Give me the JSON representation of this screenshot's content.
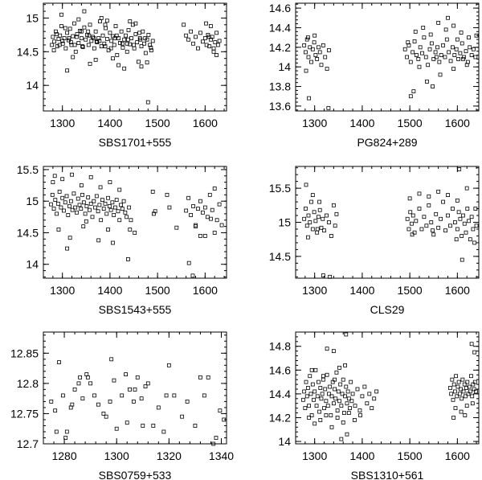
{
  "chart_data": [
    {
      "type": "scatter",
      "label": "SBS1701+555",
      "xlim": [
        1260,
        1645
      ],
      "ylim": [
        13.62,
        15.22
      ],
      "xticks": [
        1300,
        1400,
        1500,
        1600
      ],
      "yticks": [
        14,
        14.5,
        15
      ],
      "ytick_labels": [
        "14",
        "14.5",
        "15"
      ],
      "x": [
        1280,
        1283,
        1286,
        1289,
        1292,
        1295,
        1298,
        1301,
        1304,
        1307,
        1310,
        1313,
        1316,
        1319,
        1322,
        1325,
        1328,
        1331,
        1334,
        1337,
        1340,
        1343,
        1346,
        1349,
        1352,
        1355,
        1358,
        1361,
        1364,
        1367,
        1370,
        1373,
        1376,
        1379,
        1382,
        1385,
        1388,
        1391,
        1394,
        1397,
        1400,
        1403,
        1406,
        1409,
        1412,
        1415,
        1418,
        1421,
        1424,
        1427,
        1430,
        1433,
        1436,
        1439,
        1442,
        1445,
        1448,
        1451,
        1454,
        1457,
        1460,
        1463,
        1466,
        1469,
        1472,
        1475,
        1478,
        1481,
        1484,
        1487,
        1490,
        1555,
        1560,
        1565,
        1570,
        1575,
        1580,
        1585,
        1590,
        1595,
        1600,
        1603,
        1606,
        1609,
        1612,
        1615,
        1618,
        1621,
        1624,
        1627,
        1630,
        1282,
        1294,
        1306,
        1318,
        1330,
        1342,
        1354,
        1366,
        1378,
        1390,
        1402,
        1414,
        1426,
        1438,
        1450,
        1462,
        1474,
        1486,
        1298,
        1322,
        1346,
        1370,
        1394,
        1418,
        1442,
        1466,
        1310,
        1334,
        1358,
        1382,
        1406,
        1430,
        1454,
        1478,
        1612,
        1624,
        1602,
        1618,
        1278,
        1288,
        1300,
        1314,
        1326,
        1340,
        1356,
        1372,
        1390,
        1410,
        1436,
        1464,
        1480,
        1608
      ],
      "y": [
        14.72,
        14.65,
        14.8,
        14.58,
        14.69,
        14.74,
        14.88,
        14.62,
        14.7,
        14.55,
        14.78,
        14.67,
        14.84,
        14.6,
        14.73,
        14.92,
        14.5,
        14.76,
        14.63,
        14.81,
        14.7,
        14.57,
        14.86,
        14.68,
        14.75,
        14.6,
        14.9,
        14.66,
        14.72,
        14.55,
        14.8,
        14.64,
        14.7,
        14.95,
        14.58,
        14.74,
        14.62,
        14.85,
        14.69,
        14.52,
        14.78,
        14.66,
        14.73,
        14.6,
        14.88,
        14.45,
        14.7,
        14.63,
        14.8,
        14.56,
        14.68,
        14.74,
        14.5,
        14.82,
        14.61,
        14.7,
        14.9,
        14.55,
        14.76,
        14.64,
        14.35,
        14.7,
        14.58,
        14.8,
        14.62,
        14.48,
        14.68,
        14.75,
        14.6,
        14.52,
        14.66,
        14.9,
        14.74,
        14.68,
        14.8,
        14.62,
        14.72,
        14.55,
        14.78,
        14.65,
        14.7,
        14.6,
        14.75,
        14.58,
        14.68,
        14.72,
        14.5,
        14.64,
        14.78,
        14.6,
        14.66,
        14.52,
        14.6,
        14.85,
        14.64,
        14.72,
        14.58,
        14.8,
        14.7,
        14.66,
        14.9,
        14.55,
        14.74,
        14.62,
        14.68,
        14.6,
        14.78,
        14.7,
        14.56,
        15.05,
        14.42,
        15.1,
        14.38,
        14.96,
        14.3,
        14.95,
        14.28,
        14.22,
        14.98,
        14.32,
        15.0,
        14.4,
        14.25,
        14.92,
        14.34,
        14.88,
        14.45,
        14.92,
        14.55,
        14.6,
        14.76,
        14.66,
        14.7,
        14.6,
        14.8,
        14.74,
        14.65,
        14.58,
        14.7,
        14.62,
        14.68,
        13.75,
        14.72
      ],
      "title": "",
      "xlabel": "",
      "ylabel": ""
    },
    {
      "type": "scatter",
      "label": "PG824+289",
      "xlim": [
        1260,
        1645
      ],
      "ylim": [
        13.55,
        14.65
      ],
      "xticks": [
        1300,
        1400,
        1500,
        1600
      ],
      "yticks": [
        13.6,
        13.8,
        14,
        14.2,
        14.4,
        14.6
      ],
      "ytick_labels": [
        "13.6",
        "13.8",
        "14",
        "14.2",
        "14.4",
        "14.6"
      ],
      "x": [
        1278,
        1281,
        1284,
        1287,
        1290,
        1293,
        1296,
        1299,
        1302,
        1305,
        1308,
        1311,
        1314,
        1318,
        1322,
        1326,
        1330,
        1490,
        1494,
        1498,
        1502,
        1506,
        1510,
        1514,
        1518,
        1522,
        1526,
        1530,
        1534,
        1538,
        1542,
        1546,
        1550,
        1554,
        1558,
        1562,
        1566,
        1570,
        1574,
        1578,
        1582,
        1586,
        1590,
        1594,
        1598,
        1602,
        1606,
        1610,
        1614,
        1618,
        1622,
        1626,
        1630,
        1634,
        1638,
        1286,
        1300,
        1496,
        1512,
        1528,
        1544,
        1560,
        1576,
        1592,
        1608,
        1624,
        1640,
        1282,
        1508,
        1536,
        1564,
        1592,
        1620,
        1329,
        1502,
        1548,
        1580,
        1612,
        1288,
        1520,
        1556,
        1600
      ],
      "y": [
        14.22,
        14.15,
        14.28,
        14.1,
        14.2,
        14.05,
        14.18,
        14.25,
        14.12,
        14.08,
        14.2,
        14.15,
        14.02,
        14.22,
        14.1,
        13.98,
        14.17,
        14.18,
        14.1,
        14.22,
        14.05,
        14.15,
        14.26,
        14.12,
        14.08,
        14.2,
        14.14,
        14.3,
        14.1,
        14.02,
        14.18,
        14.24,
        14.08,
        14.15,
        14.2,
        14.05,
        14.12,
        14.22,
        14.1,
        14.28,
        14.15,
        14.06,
        14.2,
        14.12,
        14.18,
        14.08,
        14.14,
        14.24,
        14.1,
        14.16,
        14.05,
        14.2,
        14.12,
        14.18,
        14.1,
        14.3,
        14.32,
        14.25,
        14.36,
        14.4,
        14.33,
        14.45,
        14.38,
        14.42,
        14.35,
        14.3,
        14.32,
        13.96,
        13.75,
        13.85,
        13.92,
        13.98,
        14.02,
        13.58,
        13.7,
        13.8,
        14.5,
        14.08,
        13.68,
        14.0,
        14.1,
        14.28
      ],
      "title": "",
      "xlabel": "",
      "ylabel": ""
    },
    {
      "type": "scatter",
      "label": "SBS1543+555",
      "xlim": [
        1260,
        1645
      ],
      "ylim": [
        13.78,
        15.55
      ],
      "xticks": [
        1300,
        1400,
        1500,
        1600
      ],
      "yticks": [
        14,
        14.5,
        15,
        15.5
      ],
      "ytick_labels": [
        "14",
        "14.5",
        "15",
        "15.5"
      ],
      "x": [
        1276,
        1279,
        1282,
        1285,
        1288,
        1291,
        1294,
        1297,
        1300,
        1303,
        1306,
        1309,
        1312,
        1315,
        1318,
        1321,
        1324,
        1327,
        1330,
        1333,
        1336,
        1339,
        1342,
        1345,
        1348,
        1351,
        1354,
        1357,
        1360,
        1363,
        1366,
        1369,
        1372,
        1375,
        1378,
        1381,
        1384,
        1387,
        1390,
        1393,
        1396,
        1399,
        1402,
        1405,
        1408,
        1411,
        1414,
        1417,
        1420,
        1423,
        1426,
        1429,
        1432,
        1435,
        1440,
        1490,
        1495,
        1520,
        1525,
        1560,
        1565,
        1570,
        1575,
        1580,
        1585,
        1590,
        1595,
        1600,
        1605,
        1610,
        1615,
        1620,
        1625,
        1630,
        1635,
        1284,
        1300,
        1320,
        1340,
        1360,
        1380,
        1400,
        1420,
        1438,
        1442,
        1580,
        1600,
        1620,
        1292,
        1316,
        1344,
        1376,
        1406,
        1452,
        1566,
        1590,
        1280,
        1310,
        1350,
        1396,
        1444,
        1492,
        1540,
        1574,
        1612
      ],
      "y": [
        14.95,
        15.1,
        14.88,
        15.02,
        14.8,
        14.96,
        15.15,
        14.9,
        15.05,
        14.85,
        14.98,
        15.08,
        14.78,
        14.92,
        15.0,
        14.86,
        15.12,
        14.9,
        14.82,
        15.04,
        14.94,
        14.88,
        15.1,
        14.98,
        14.8,
        14.92,
        15.06,
        14.86,
        14.96,
        14.75,
        15.0,
        14.9,
        15.08,
        14.84,
        14.94,
        14.7,
        15.02,
        14.88,
        14.96,
        14.8,
        15.05,
        14.92,
        14.86,
        14.98,
        14.78,
        14.9,
        15.02,
        14.84,
        14.7,
        14.94,
        14.88,
        15.0,
        14.82,
        14.75,
        14.9,
        15.15,
        14.84,
        15.1,
        14.9,
        14.85,
        15.05,
        14.78,
        14.92,
        14.6,
        14.88,
        15.0,
        14.82,
        14.9,
        14.75,
        15.1,
        14.86,
        15.2,
        14.7,
        14.95,
        14.62,
        15.4,
        15.35,
        15.42,
        15.25,
        15.38,
        15.22,
        15.3,
        15.18,
        14.08,
        14.55,
        14.62,
        14.45,
        14.5,
        14.55,
        14.42,
        14.6,
        14.38,
        14.34,
        14.5,
        14.02,
        14.45,
        15.3,
        14.25,
        14.68,
        14.55,
        14.7,
        14.8,
        14.58,
        13.82,
        14.72
      ],
      "title": "",
      "xlabel": "",
      "ylabel": ""
    },
    {
      "type": "scatter",
      "label": "CLS29",
      "xlim": [
        1260,
        1645
      ],
      "ylim": [
        14.18,
        15.82
      ],
      "xticks": [
        1300,
        1400,
        1500,
        1600
      ],
      "yticks": [
        14.5,
        15,
        15.5
      ],
      "ytick_labels": [
        "14.5",
        "15",
        "15.5"
      ],
      "x": [
        1278,
        1281,
        1284,
        1287,
        1290,
        1293,
        1296,
        1299,
        1302,
        1305,
        1308,
        1311,
        1314,
        1317,
        1320,
        1325,
        1330,
        1335,
        1340,
        1343,
        1346,
        1495,
        1498,
        1501,
        1504,
        1507,
        1510,
        1513,
        1520,
        1525,
        1530,
        1535,
        1540,
        1545,
        1550,
        1555,
        1560,
        1565,
        1570,
        1575,
        1580,
        1585,
        1590,
        1595,
        1600,
        1603,
        1606,
        1609,
        1612,
        1615,
        1618,
        1621,
        1624,
        1627,
        1630,
        1633,
        1636,
        1640,
        1282,
        1296,
        1310,
        1500,
        1520,
        1540,
        1560,
        1580,
        1600,
        1620,
        1638,
        1286,
        1306,
        1505,
        1548,
        1598,
        1610,
        1318,
        1332,
        1604
      ],
      "y": [
        15.05,
        15.2,
        14.95,
        15.1,
        15.0,
        15.3,
        14.9,
        15.15,
        15.02,
        14.85,
        15.08,
        15.18,
        14.92,
        15.05,
        14.88,
        15.1,
        15.0,
        14.8,
        15.25,
        14.95,
        15.12,
        15.05,
        14.9,
        15.15,
        14.98,
        15.1,
        14.85,
        15.02,
        15.2,
        14.9,
        15.08,
        14.95,
        15.25,
        15.0,
        14.82,
        15.12,
        14.92,
        15.05,
        15.3,
        14.88,
        15.1,
        14.95,
        15.2,
        15.0,
        14.9,
        15.15,
        15.05,
        14.8,
        15.1,
        14.98,
        14.85,
        15.2,
        15.02,
        14.75,
        15.08,
        14.9,
        14.7,
        14.95,
        15.55,
        15.4,
        15.3,
        15.35,
        15.42,
        15.38,
        15.45,
        15.4,
        15.32,
        15.5,
        15.2,
        14.78,
        14.9,
        14.82,
        14.88,
        14.75,
        14.45,
        14.22,
        14.2,
        15.78
      ],
      "title": "",
      "xlabel": "",
      "ylabel": ""
    },
    {
      "type": "scatter",
      "label": "SBS0759+533",
      "xlim": [
        1272,
        1342
      ],
      "ylim": [
        12.7,
        12.885
      ],
      "xticks": [
        1280,
        1300,
        1320,
        1340
      ],
      "yticks": [
        12.7,
        12.75,
        12.8,
        12.85
      ],
      "ytick_labels": [
        "12.7",
        "12.75",
        "12.8",
        "12.85"
      ],
      "x": [
        1275,
        1276.5,
        1278,
        1279.5,
        1281,
        1282.5,
        1284,
        1285.5,
        1287,
        1288.5,
        1290,
        1291.5,
        1293,
        1296,
        1297.5,
        1299,
        1302,
        1303.5,
        1305,
        1306.5,
        1308,
        1309.5,
        1311,
        1314,
        1316,
        1318,
        1320,
        1322,
        1325,
        1327,
        1332,
        1333.5,
        1335,
        1337,
        1339.5,
        1341,
        1277,
        1280.5,
        1286,
        1289,
        1295,
        1300,
        1304,
        1307,
        1312,
        1319,
        1330,
        1338,
        1283,
        1298,
        1310
      ],
      "y": [
        12.77,
        12.755,
        12.835,
        12.78,
        12.72,
        12.76,
        12.79,
        12.8,
        12.775,
        12.815,
        12.8,
        12.78,
        12.765,
        12.745,
        12.77,
        12.805,
        12.78,
        12.815,
        12.79,
        12.77,
        12.81,
        12.775,
        12.795,
        12.73,
        12.76,
        12.72,
        12.83,
        12.78,
        12.745,
        12.77,
        12.81,
        12.78,
        12.81,
        12.7,
        12.755,
        12.74,
        12.72,
        12.71,
        12.81,
        12.81,
        12.75,
        12.725,
        12.735,
        12.79,
        12.8,
        12.78,
        12.73,
        12.71,
        12.765,
        12.84,
        12.73
      ],
      "title": "",
      "xlabel": "",
      "ylabel": ""
    },
    {
      "type": "scatter",
      "label": "SBS1310+561",
      "xlim": [
        1260,
        1645
      ],
      "ylim": [
        13.98,
        14.92
      ],
      "xticks": [
        1300,
        1400,
        1500,
        1600
      ],
      "yticks": [
        14,
        14.2,
        14.4,
        14.6,
        14.8
      ],
      "ytick_labels": [
        "14",
        "14.2",
        "14.4",
        "14.6",
        "14.8"
      ],
      "x": [
        1276,
        1278,
        1280,
        1282,
        1284,
        1286,
        1288,
        1290,
        1292,
        1294,
        1296,
        1298,
        1300,
        1302,
        1304,
        1306,
        1308,
        1310,
        1312,
        1314,
        1316,
        1318,
        1320,
        1322,
        1324,
        1326,
        1328,
        1330,
        1332,
        1334,
        1336,
        1338,
        1340,
        1342,
        1344,
        1346,
        1348,
        1350,
        1352,
        1354,
        1356,
        1358,
        1360,
        1362,
        1364,
        1366,
        1368,
        1370,
        1372,
        1374,
        1376,
        1378,
        1380,
        1385,
        1390,
        1395,
        1400,
        1405,
        1410,
        1415,
        1420,
        1425,
        1430,
        1585,
        1587,
        1589,
        1591,
        1593,
        1595,
        1597,
        1599,
        1601,
        1603,
        1605,
        1607,
        1609,
        1611,
        1613,
        1615,
        1617,
        1619,
        1621,
        1623,
        1625,
        1627,
        1629,
        1631,
        1633,
        1635,
        1637,
        1639,
        1288,
        1300,
        1312,
        1324,
        1336,
        1348,
        1360,
        1372,
        1384,
        1396,
        1596,
        1608,
        1620,
        1632,
        1340,
        1352,
        1364,
        1630,
        1636,
        1326,
        1356,
        1368,
        1592,
        1616,
        1294,
        1318,
        1342,
        1366
      ],
      "y": [
        14.35,
        14.42,
        14.28,
        14.5,
        14.38,
        14.45,
        14.3,
        14.55,
        14.4,
        14.22,
        14.48,
        14.35,
        14.42,
        14.6,
        14.3,
        14.38,
        14.5,
        14.25,
        14.45,
        14.36,
        14.4,
        14.52,
        14.28,
        14.44,
        14.34,
        14.56,
        14.3,
        14.4,
        14.46,
        14.22,
        14.38,
        14.5,
        14.32,
        14.44,
        14.36,
        14.58,
        14.26,
        14.42,
        14.34,
        14.48,
        14.3,
        14.4,
        14.52,
        14.24,
        14.38,
        14.46,
        14.32,
        14.42,
        14.36,
        14.28,
        14.5,
        14.34,
        14.4,
        14.3,
        14.44,
        14.26,
        14.38,
        14.46,
        14.32,
        14.4,
        14.28,
        14.36,
        14.42,
        14.45,
        14.4,
        14.52,
        14.35,
        14.48,
        14.42,
        14.55,
        14.38,
        14.46,
        14.5,
        14.4,
        14.44,
        14.36,
        14.52,
        14.42,
        14.48,
        14.38,
        14.45,
        14.5,
        14.4,
        14.46,
        14.42,
        14.55,
        14.38,
        14.48,
        14.44,
        14.5,
        14.42,
        14.2,
        14.15,
        14.18,
        14.22,
        14.12,
        14.2,
        14.16,
        14.24,
        14.18,
        14.22,
        14.28,
        14.25,
        14.3,
        14.32,
        14.76,
        14.62,
        14.64,
        14.82,
        14.75,
        14.78,
        14.02,
        14.06,
        14.2,
        14.22,
        14.6,
        14.55,
        14.52,
        14.9
      ],
      "title": "",
      "xlabel": "",
      "ylabel": ""
    }
  ]
}
